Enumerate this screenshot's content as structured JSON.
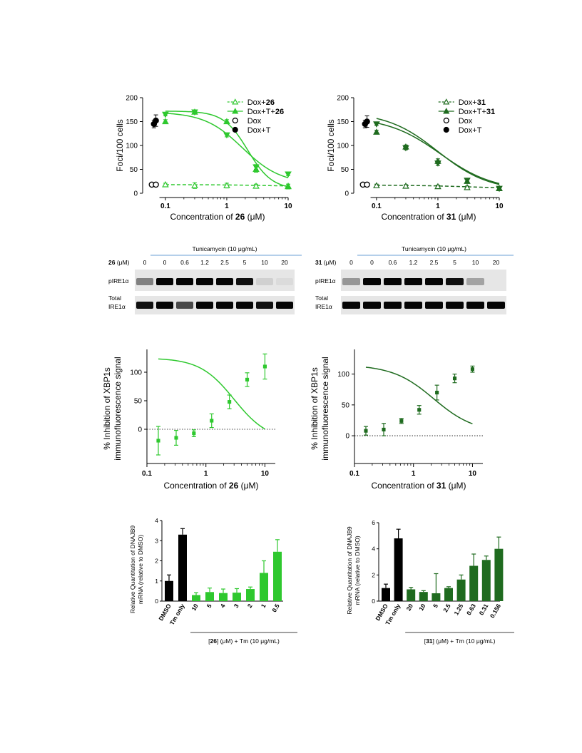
{
  "colors": {
    "c26": "#2ec82e",
    "c31": "#1f6b1f",
    "black": "#000000",
    "ctrl": "#000000"
  },
  "chart_data": [
    {
      "id": "foci26",
      "type": "scatter",
      "ylabel": "Foci/100 cells",
      "xlabel_pre": "Concentration of ",
      "xlabel_bold": "26",
      "xlabel_post": " (μM)",
      "xscale": "log",
      "xlim": [
        0.05,
        10
      ],
      "ylim": [
        0,
        200
      ],
      "xticks": [
        "0.1",
        "1",
        "10"
      ],
      "yticks": [
        "0",
        "50",
        "100",
        "150",
        "200"
      ],
      "legend_placement": "top-right",
      "series": [
        {
          "name_pre": "Dox+",
          "name_bold": "26",
          "marker": "open-triangle-up",
          "dashed": true,
          "x": [
            0.1,
            0.3,
            1,
            3,
            10
          ],
          "y": [
            18,
            16,
            16,
            15,
            14
          ],
          "err": [
            3,
            6,
            5,
            4,
            5
          ]
        },
        {
          "name_pre": "Dox+T+",
          "name_bold": "26",
          "marker": "triangle-up",
          "x": [
            0.1,
            0.3,
            1,
            3,
            10
          ],
          "y": [
            150,
            170,
            150,
            50,
            15
          ],
          "err": [
            4,
            4,
            4,
            6,
            4
          ]
        },
        {
          "name_pre": "",
          "name_bold": "",
          "marker": "triangle-down",
          "x": [
            0.1,
            0.3,
            1,
            3,
            10
          ],
          "y": [
            165,
            170,
            122,
            55,
            40
          ],
          "err": [
            3,
            4,
            4,
            5,
            3
          ]
        },
        {
          "name_pre": "Dox",
          "name_bold": "",
          "marker": "open-circle",
          "x": [
            0.06,
            0.07
          ],
          "y": [
            18,
            18
          ],
          "err": [
            0,
            0
          ]
        },
        {
          "name_pre": "Dox+T",
          "name_bold": "",
          "marker": "circle",
          "x": [
            0.065,
            0.07
          ],
          "y": [
            145,
            152
          ],
          "err": [
            8,
            12
          ]
        }
      ]
    },
    {
      "id": "foci31",
      "type": "scatter",
      "ylabel": "Foci/100 cells",
      "xlabel_pre": "Concentration of ",
      "xlabel_bold": "31",
      "xlabel_post": "  (μM)",
      "xscale": "log",
      "xlim": [
        0.05,
        10
      ],
      "ylim": [
        0,
        200
      ],
      "xticks": [
        "0.1",
        "1",
        "10"
      ],
      "yticks": [
        "0",
        "50",
        "100",
        "150",
        "200"
      ],
      "legend_placement": "top-right",
      "series": [
        {
          "name_pre": "Dox+",
          "name_bold": "31",
          "marker": "open-triangle-up",
          "dashed": true,
          "x": [
            0.1,
            0.3,
            1,
            3,
            10
          ],
          "y": [
            16,
            15,
            14,
            12,
            10
          ],
          "err": [
            3,
            3,
            3,
            3,
            3
          ]
        },
        {
          "name_pre": "Dox+T+",
          "name_bold": "31",
          "marker": "triangle-up",
          "x": [
            0.1,
            0.3,
            1,
            3,
            10
          ],
          "y": [
            128,
            97,
            67,
            25,
            10
          ],
          "err": [
            4,
            4,
            5,
            4,
            3
          ]
        },
        {
          "name_pre": "",
          "name_bold": "",
          "marker": "triangle-down",
          "x": [
            0.1,
            0.3,
            1,
            3,
            10
          ],
          "y": [
            145,
            95,
            63,
            27,
            10
          ],
          "err": [
            3,
            4,
            5,
            4,
            3
          ]
        },
        {
          "name_pre": "Dox",
          "name_bold": "",
          "marker": "open-circle",
          "x": [
            0.06,
            0.07
          ],
          "y": [
            18,
            18
          ],
          "err": [
            0,
            0
          ]
        },
        {
          "name_pre": "Dox+T",
          "name_bold": "",
          "marker": "circle",
          "x": [
            0.065,
            0.07
          ],
          "y": [
            145,
            150
          ],
          "err": [
            8,
            12
          ]
        }
      ]
    },
    {
      "id": "xbp26",
      "type": "scatter",
      "ylabel1": "% Inhibition of XBP1s",
      "ylabel2": "immunofluorescence signal",
      "xlabel_pre": "Concentration of ",
      "xlabel_bold": "26",
      "xlabel_post": " (μM)",
      "xscale": "log",
      "xlim": [
        0.1,
        15
      ],
      "ylim": [
        -60,
        140
      ],
      "xticks": [
        "0.1",
        "1",
        "10"
      ],
      "yticks": [
        "0",
        "50",
        "100"
      ],
      "series": [
        {
          "x": [
            0.156,
            0.313,
            0.625,
            1.25,
            2.5,
            5,
            10
          ],
          "y": [
            -20,
            -15,
            -7,
            15,
            48,
            87,
            110
          ],
          "err": [
            25,
            13,
            6,
            12,
            12,
            12,
            22
          ]
        }
      ]
    },
    {
      "id": "xbp31",
      "type": "scatter",
      "ylabel1": "% Inhibition of XBP1s",
      "ylabel2": "immunofluorescence signal",
      "xlabel_pre": "Concentration of ",
      "xlabel_bold": "31",
      "xlabel_post": " (μM)",
      "xscale": "log",
      "xlim": [
        0.1,
        15
      ],
      "ylim": [
        -45,
        140
      ],
      "xticks": [
        "0.1",
        "1",
        "10"
      ],
      "yticks": [
        "0",
        "50",
        "100"
      ],
      "series": [
        {
          "x": [
            0.156,
            0.313,
            0.625,
            1.25,
            2.5,
            5,
            10
          ],
          "y": [
            8,
            10,
            24,
            42,
            70,
            93,
            108
          ],
          "err": [
            7,
            10,
            4,
            7,
            12,
            7,
            5
          ]
        }
      ]
    },
    {
      "id": "qpcr26",
      "type": "bar",
      "ylabel1": "Relative Quantitation of DNAJB9",
      "ylabel2": "mRNA (relative to DMSO)",
      "categories": [
        "DMSO",
        "Tm only",
        "10",
        "5",
        "4",
        "3",
        "2",
        "1",
        "0.5"
      ],
      "values": [
        1.0,
        3.3,
        0.3,
        0.45,
        0.4,
        0.42,
        0.6,
        1.4,
        2.45
      ],
      "err": [
        0.3,
        0.3,
        0.12,
        0.2,
        0.2,
        0.2,
        0.1,
        0.6,
        0.6
      ],
      "ylim": [
        0,
        4
      ],
      "yticks": [
        "0",
        "1",
        "2",
        "3",
        "4"
      ],
      "xlabel_pre": "[",
      "xlabel_bold": "26",
      "xlabel_post": "] (μM) + Tm (10 μg/mL)"
    },
    {
      "id": "qpcr31",
      "type": "bar",
      "ylabel1": "Relative Quantitation of DNAJB9",
      "ylabel2": "mRNA (relative to DMSO)",
      "categories": [
        "DMSO",
        "Tm only",
        "20",
        "10",
        "5",
        "2.5",
        "1.25",
        "0.63",
        "0.31",
        "0.156"
      ],
      "values": [
        1.0,
        4.8,
        0.9,
        0.7,
        0.6,
        1.0,
        1.65,
        2.7,
        3.15,
        4.0
      ],
      "err": [
        0.3,
        0.7,
        0.15,
        0.1,
        1.5,
        0.1,
        0.35,
        0.9,
        0.3,
        0.9
      ],
      "ylim": [
        0,
        6
      ],
      "yticks": [
        "0",
        "2",
        "4",
        "6"
      ],
      "xlabel_pre": "[",
      "xlabel_bold": "31",
      "xlabel_post": "] (μM) + Tm (10 μg/mL)"
    }
  ],
  "blots": [
    {
      "id": "blot26",
      "compound_label": "26",
      "unit": " (μM)",
      "treatment": "Tunicamycin (10 μg/mL)",
      "lanes": [
        "0",
        "0",
        "0.6",
        "1.2",
        "2.5",
        "5",
        "10",
        "20"
      ],
      "row1_label": "pIRE1α",
      "row2_label_1": "Total",
      "row2_label_2": "IRE1α",
      "p_intensity": [
        0.45,
        1.0,
        1.0,
        1.0,
        1.0,
        0.95,
        0.1,
        0.05
      ],
      "t_intensity": [
        0.95,
        1.0,
        0.7,
        1.0,
        1.0,
        1.0,
        0.95,
        1.0
      ]
    },
    {
      "id": "blot31",
      "compound_label": "31",
      "unit": " (μM)",
      "treatment": "Tunicamycin (10 μg/mL)",
      "lanes": [
        "0",
        "0",
        "0.6",
        "1.2",
        "2.5",
        "5",
        "10",
        "20"
      ],
      "row1_label": "pIRE1α",
      "row2_label_1": "Total",
      "row2_label_2": "IRE1α",
      "p_intensity": [
        0.35,
        1.0,
        1.0,
        1.0,
        1.0,
        0.95,
        0.3,
        0.0
      ],
      "t_intensity": [
        1.0,
        1.0,
        1.0,
        1.0,
        1.0,
        1.0,
        1.0,
        1.0
      ]
    }
  ]
}
